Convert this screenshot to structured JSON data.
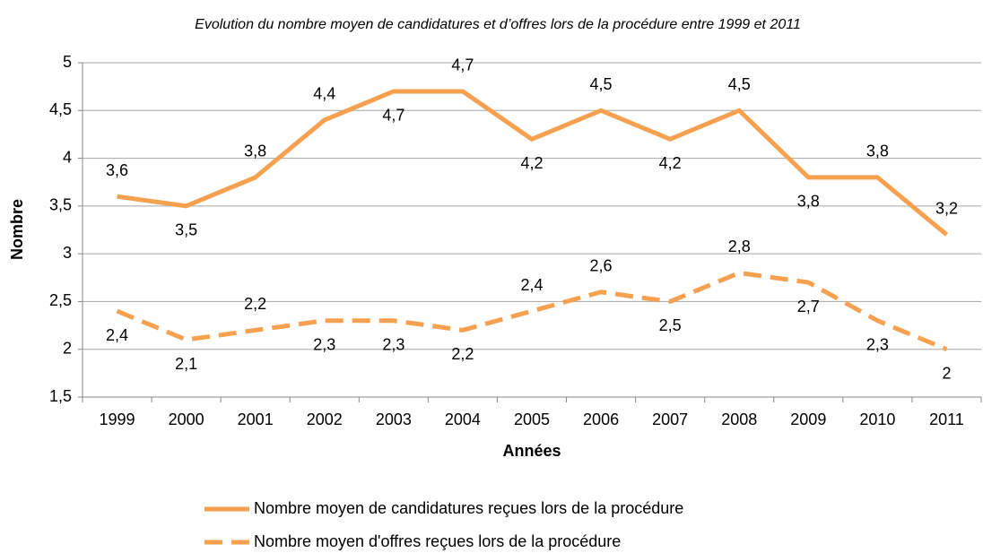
{
  "chart_data": {
    "type": "line",
    "title": "Evolution du nombre moyen de candidatures et d’offres lors de la procédure entre 1999 et 2011",
    "xlabel": "Années",
    "ylabel": "Nombre",
    "categories": [
      "1999",
      "2000",
      "2001",
      "2002",
      "2003",
      "2004",
      "2005",
      "2006",
      "2007",
      "2008",
      "2009",
      "2010",
      "2011"
    ],
    "series": [
      {
        "name": "Nombre moyen de candidatures reçues lors de la procédure",
        "color": "#f7a04f",
        "dash": "solid",
        "values": [
          3.6,
          3.5,
          3.8,
          4.4,
          4.7,
          4.7,
          4.2,
          4.5,
          4.2,
          4.5,
          3.8,
          3.8,
          3.2
        ],
        "value_labels": [
          "3,6",
          "3,5",
          "3,8",
          "4,4",
          "4,7",
          "4,7",
          "4,2",
          "4,5",
          "4,2",
          "4,5",
          "3,8",
          "3,8",
          "3,2"
        ]
      },
      {
        "name": "Nombre moyen d'offres reçues lors de la procédure",
        "color": "#f7a04f",
        "dash": "dashed",
        "values": [
          2.4,
          2.1,
          2.2,
          2.3,
          2.3,
          2.2,
          2.4,
          2.6,
          2.5,
          2.8,
          2.7,
          2.3,
          2
        ],
        "value_labels": [
          "2,4",
          "2,1",
          "2,2",
          "2,3",
          "2,3",
          "2,2",
          "2,4",
          "2,6",
          "2,5",
          "2,8",
          "2,7",
          "2,3",
          "2"
        ]
      }
    ],
    "ylim": [
      1.5,
      5
    ],
    "yticks": [
      {
        "value": 1.5,
        "label": "1,5"
      },
      2,
      {
        "value": 2.5,
        "label": "2,5"
      },
      3,
      {
        "value": 3.5,
        "label": "3,5"
      },
      4,
      {
        "value": 4.5,
        "label": "4,5"
      },
      5
    ],
    "grid": true,
    "legend": "bottom"
  }
}
